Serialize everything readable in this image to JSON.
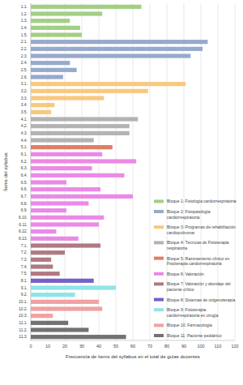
{
  "chart_data": {
    "type": "bar",
    "orientation": "horizontal",
    "grid": true,
    "legend": "lower right",
    "x_label": "Frecuencia de ítems del syllabus en el total de guías docentes",
    "y_label": "Ítems del syllabus",
    "xlim": [
      0,
      120
    ],
    "xticks": [
      0,
      10,
      20,
      30,
      40,
      50,
      60,
      70,
      80,
      90,
      100,
      110,
      120
    ],
    "categories": [
      "1.1.",
      "1.2.",
      "1.3.",
      "1.4.",
      "1.5.",
      "2.1.",
      "2.2.",
      "2.3.",
      "2.4.",
      "2.5.",
      "2.6.",
      "3.1.",
      "3.2.",
      "3.3.",
      "3.4.",
      "3.5.",
      "4.1.",
      "4.2.",
      "4.3.",
      "4.4.",
      "5.1.",
      "6.1.",
      "6.2.",
      "6.3.",
      "6.4.",
      "6.5.",
      "6.6.",
      "6.7.",
      "6.8.",
      "6.9.",
      "6.10.",
      "6.11.",
      "6.12.",
      "6.13.",
      "7.1.",
      "7.2.",
      "7.3.",
      "7.4.",
      "7.5.",
      "8.1.",
      "9.1.",
      "9.2.",
      "10.1.",
      "10.2.",
      "10.3.",
      "11.1.",
      "11.2.",
      "11.3."
    ],
    "series": [
      {
        "name": "Bloque 1: Fisiología cardiorrespiratoria",
        "color": "#a3cf85",
        "values": [
          65,
          42,
          23,
          29,
          30,
          null,
          null,
          null,
          null,
          null,
          null,
          null,
          null,
          null,
          null,
          null,
          null,
          null,
          null,
          null,
          null,
          null,
          null,
          null,
          null,
          null,
          null,
          null,
          null,
          null,
          null,
          null,
          null,
          null,
          null,
          null,
          null,
          null,
          null,
          null,
          null,
          null,
          null,
          null,
          null,
          null,
          null,
          null
        ]
      },
      {
        "name": "Bloque 2: Fisiopatología cardiorrespiratoria",
        "color": "#97aacb",
        "values": [
          null,
          null,
          null,
          null,
          null,
          104,
          101,
          94,
          23,
          27,
          19,
          null,
          null,
          null,
          null,
          null,
          null,
          null,
          null,
          null,
          null,
          null,
          null,
          null,
          null,
          null,
          null,
          null,
          null,
          null,
          null,
          null,
          null,
          null,
          null,
          null,
          null,
          null,
          null,
          null,
          null,
          null,
          null,
          null,
          null,
          null,
          null,
          null
        ]
      },
      {
        "name": "Bloque 3: Programas de rehabilitación cardiopulmonar",
        "color": "#f8c87f",
        "values": [
          null,
          null,
          null,
          null,
          null,
          null,
          null,
          null,
          null,
          null,
          null,
          91,
          69,
          43,
          14,
          12,
          null,
          null,
          null,
          null,
          null,
          null,
          null,
          null,
          null,
          null,
          null,
          null,
          null,
          null,
          null,
          null,
          null,
          null,
          null,
          null,
          null,
          null,
          null,
          null,
          null,
          null,
          null,
          null,
          null,
          null,
          null,
          null
        ]
      },
      {
        "name": "Bloque 4: Técnicas de Fisioterapia respiratoria",
        "color": "#b3b3b3",
        "values": [
          null,
          null,
          null,
          null,
          null,
          null,
          null,
          null,
          null,
          null,
          null,
          null,
          null,
          null,
          null,
          null,
          63,
          58,
          58,
          37,
          null,
          null,
          null,
          null,
          null,
          null,
          null,
          null,
          null,
          null,
          null,
          null,
          null,
          null,
          null,
          null,
          null,
          null,
          null,
          null,
          null,
          null,
          null,
          null,
          null,
          null,
          null,
          null
        ]
      },
      {
        "name": "Bloque 5: Razonamiento clínico en Fisioterapia cardiorrespiratoria",
        "color": "#e07c68",
        "values": [
          null,
          null,
          null,
          null,
          null,
          null,
          null,
          null,
          null,
          null,
          null,
          null,
          null,
          null,
          null,
          null,
          null,
          null,
          null,
          null,
          48,
          null,
          null,
          null,
          null,
          null,
          null,
          null,
          null,
          null,
          null,
          null,
          null,
          null,
          null,
          null,
          null,
          null,
          null,
          null,
          null,
          null,
          null,
          null,
          null,
          null,
          null,
          null
        ]
      },
      {
        "name": "Bloque 6: Valoración",
        "color": "#ea8ae6",
        "values": [
          null,
          null,
          null,
          null,
          null,
          null,
          null,
          null,
          null,
          null,
          null,
          null,
          null,
          null,
          null,
          null,
          null,
          null,
          null,
          null,
          null,
          42,
          62,
          36,
          55,
          21,
          41,
          60,
          34,
          21,
          43,
          40,
          15,
          28,
          null,
          null,
          null,
          null,
          null,
          null,
          null,
          null,
          null,
          null,
          null,
          null,
          null,
          null
        ]
      },
      {
        "name": "Bloque 7: Valoración y abordaje del paciente crítico",
        "color": "#b07a82",
        "values": [
          null,
          null,
          null,
          null,
          null,
          null,
          null,
          null,
          null,
          null,
          null,
          null,
          null,
          null,
          null,
          null,
          null,
          null,
          null,
          null,
          null,
          null,
          null,
          null,
          null,
          null,
          null,
          null,
          null,
          null,
          null,
          null,
          null,
          null,
          41,
          20,
          12,
          13,
          17,
          null,
          null,
          null,
          null,
          null,
          null,
          null,
          null,
          null
        ]
      },
      {
        "name": "Bloque 8: Sistemas de oxigenoterapia",
        "color": "#7660c8",
        "values": [
          null,
          null,
          null,
          null,
          null,
          null,
          null,
          null,
          null,
          null,
          null,
          null,
          null,
          null,
          null,
          null,
          null,
          null,
          null,
          null,
          null,
          null,
          null,
          null,
          null,
          null,
          null,
          null,
          null,
          null,
          null,
          null,
          null,
          null,
          null,
          null,
          null,
          null,
          null,
          37,
          null,
          null,
          null,
          null,
          null,
          null,
          null,
          null
        ]
      },
      {
        "name": "Bloque 9: Fisioterapia cardiorrespiratoria en cirugía",
        "color": "#8fe4e8",
        "values": [
          null,
          null,
          null,
          null,
          null,
          null,
          null,
          null,
          null,
          null,
          null,
          null,
          null,
          null,
          null,
          null,
          null,
          null,
          null,
          null,
          null,
          null,
          null,
          null,
          null,
          null,
          null,
          null,
          null,
          null,
          null,
          null,
          null,
          null,
          null,
          null,
          null,
          null,
          null,
          null,
          50,
          26,
          null,
          null,
          null,
          null,
          null,
          null
        ]
      },
      {
        "name": "Bloque 10: Farmacología",
        "color": "#f0a1a1",
        "values": [
          null,
          null,
          null,
          null,
          null,
          null,
          null,
          null,
          null,
          null,
          null,
          null,
          null,
          null,
          null,
          null,
          null,
          null,
          null,
          null,
          null,
          null,
          null,
          null,
          null,
          null,
          null,
          null,
          null,
          null,
          null,
          null,
          null,
          null,
          null,
          null,
          null,
          null,
          null,
          null,
          null,
          null,
          40,
          42,
          13,
          null,
          null,
          null
        ]
      },
      {
        "name": "Bloque 11: Paciente pediátrico",
        "color": "#727272",
        "values": [
          null,
          null,
          null,
          null,
          null,
          null,
          null,
          null,
          null,
          null,
          null,
          null,
          null,
          null,
          null,
          null,
          null,
          null,
          null,
          null,
          null,
          null,
          null,
          null,
          null,
          null,
          null,
          null,
          null,
          null,
          null,
          null,
          null,
          null,
          null,
          null,
          null,
          null,
          null,
          null,
          null,
          null,
          null,
          null,
          null,
          22,
          34,
          56
        ]
      }
    ]
  }
}
